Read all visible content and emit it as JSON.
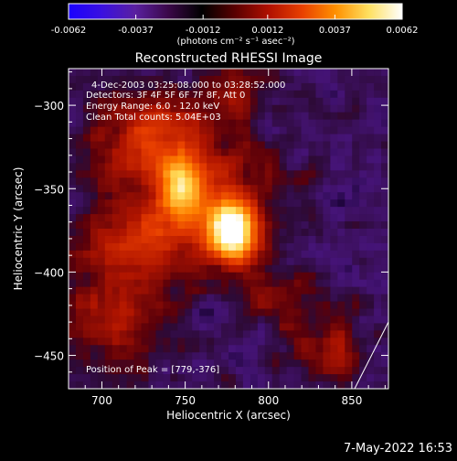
{
  "colorbar": {
    "tick_labels": [
      "-0.0062",
      "-0.0037",
      "-0.0012",
      "0.0012",
      "0.0037",
      "0.0062"
    ],
    "unit_label": "(photons cm⁻² s⁻¹ asec⁻²)",
    "range": [
      -0.0062,
      0.0062
    ],
    "colors": [
      "#1a00ff",
      "#3a10e0",
      "#5a20a0",
      "#3a0848",
      "#000000",
      "#5a0000",
      "#b01000",
      "#e84000",
      "#ff9000",
      "#ffe060",
      "#ffffff"
    ]
  },
  "title": "Reconstructed RHESSI Image",
  "info_lines": [
    "4-Dec-2003 03:25:08.000 to 03:28:52.000",
    "Detectors: 3F 4F 5F 6F 7F 8F, Att 0",
    "Energy Range: 6.0 - 12.0 keV",
    "Clean     Total counts: 5.04E+03"
  ],
  "peak_label": "Position of Peak = [779,-376]",
  "footer_date": "7-May-2022 16:53",
  "chart_data": {
    "type": "heatmap",
    "title": "Reconstructed RHESSI Image",
    "xlabel": "Heliocentric X (arcsec)",
    "ylabel": "Heliocentric Y (arcsec)",
    "xlim": [
      680,
      872
    ],
    "ylim": [
      -470,
      -278
    ],
    "x_ticks": [
      700,
      750,
      800,
      850
    ],
    "y_ticks": [
      -300,
      -350,
      -400,
      -450
    ],
    "peak": [
      779,
      -376
    ],
    "emission_blobs": [
      {
        "x": 779,
        "y": -376,
        "sx": 10,
        "sy": 12,
        "amp": 1.0
      },
      {
        "x": 748,
        "y": -350,
        "sx": 8,
        "sy": 12,
        "amp": 0.6
      },
      {
        "x": 730,
        "y": -320,
        "sx": 25,
        "sy": 18,
        "amp": 0.45
      },
      {
        "x": 760,
        "y": -360,
        "sx": 30,
        "sy": 25,
        "amp": 0.4
      },
      {
        "x": 715,
        "y": -385,
        "sx": 22,
        "sy": 18,
        "amp": 0.35
      },
      {
        "x": 705,
        "y": -430,
        "sx": 22,
        "sy": 20,
        "amp": 0.3
      },
      {
        "x": 835,
        "y": -445,
        "sx": 15,
        "sy": 15,
        "amp": 0.3
      },
      {
        "x": 800,
        "y": -415,
        "sx": 15,
        "sy": 12,
        "amp": 0.2
      },
      {
        "x": 780,
        "y": -290,
        "sx": 15,
        "sy": 12,
        "amp": 0.25
      }
    ]
  }
}
